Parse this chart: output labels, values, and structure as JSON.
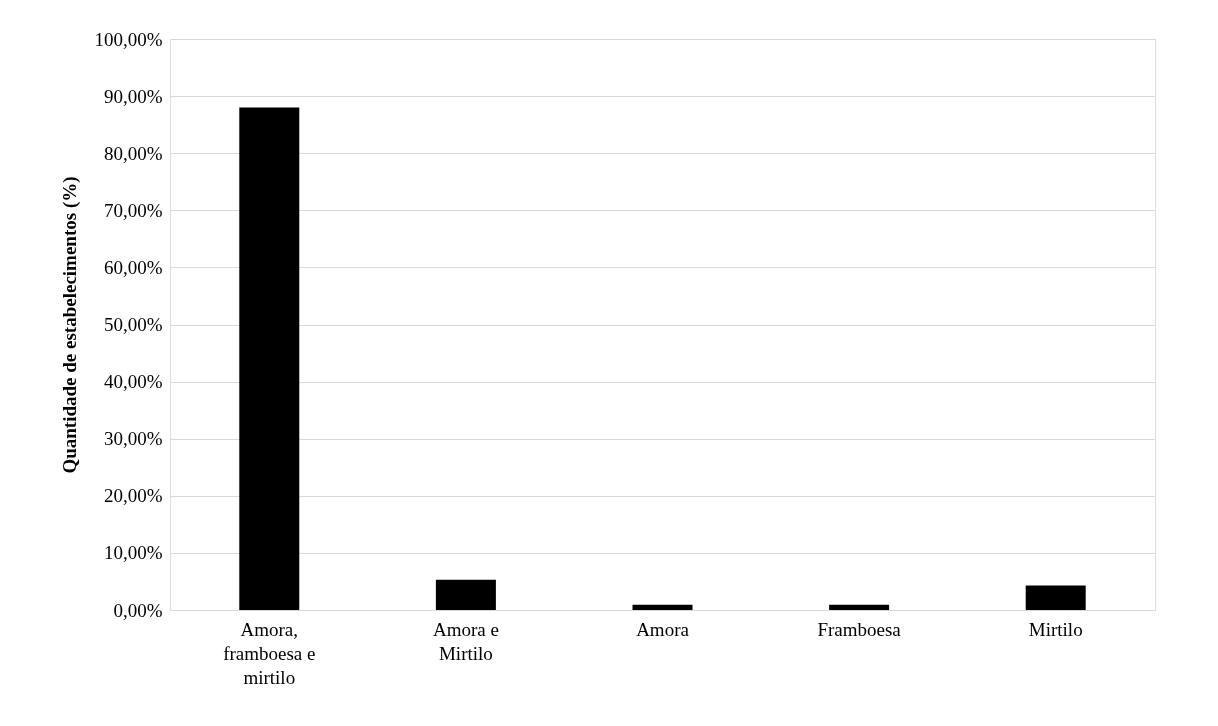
{
  "chart_data": {
    "type": "bar",
    "ylabel": "Quantidade de estabelecimentos (%)",
    "categories": [
      "Amora, framboesa e mirtilo",
      "Amora e Mirtilo",
      "Amora",
      "Framboesa",
      "Mirtilo"
    ],
    "values": [
      88.0,
      5.3,
      0.9,
      0.9,
      4.3
    ],
    "color": "#000000",
    "ylim": [
      0,
      100
    ],
    "yticks": [
      {
        "value": 0,
        "label": "0,00%"
      },
      {
        "value": 10,
        "label": "10,00%"
      },
      {
        "value": 20,
        "label": "20,00%"
      },
      {
        "value": 30,
        "label": "30,00%"
      },
      {
        "value": 40,
        "label": "40,00%"
      },
      {
        "value": 50,
        "label": "50,00%"
      },
      {
        "value": 60,
        "label": "60,00%"
      },
      {
        "value": 70,
        "label": "70,00%"
      },
      {
        "value": 80,
        "label": "80,00%"
      },
      {
        "value": 90,
        "label": "90,00%"
      },
      {
        "value": 100,
        "label": "100,00%"
      }
    ],
    "grid": "y"
  }
}
